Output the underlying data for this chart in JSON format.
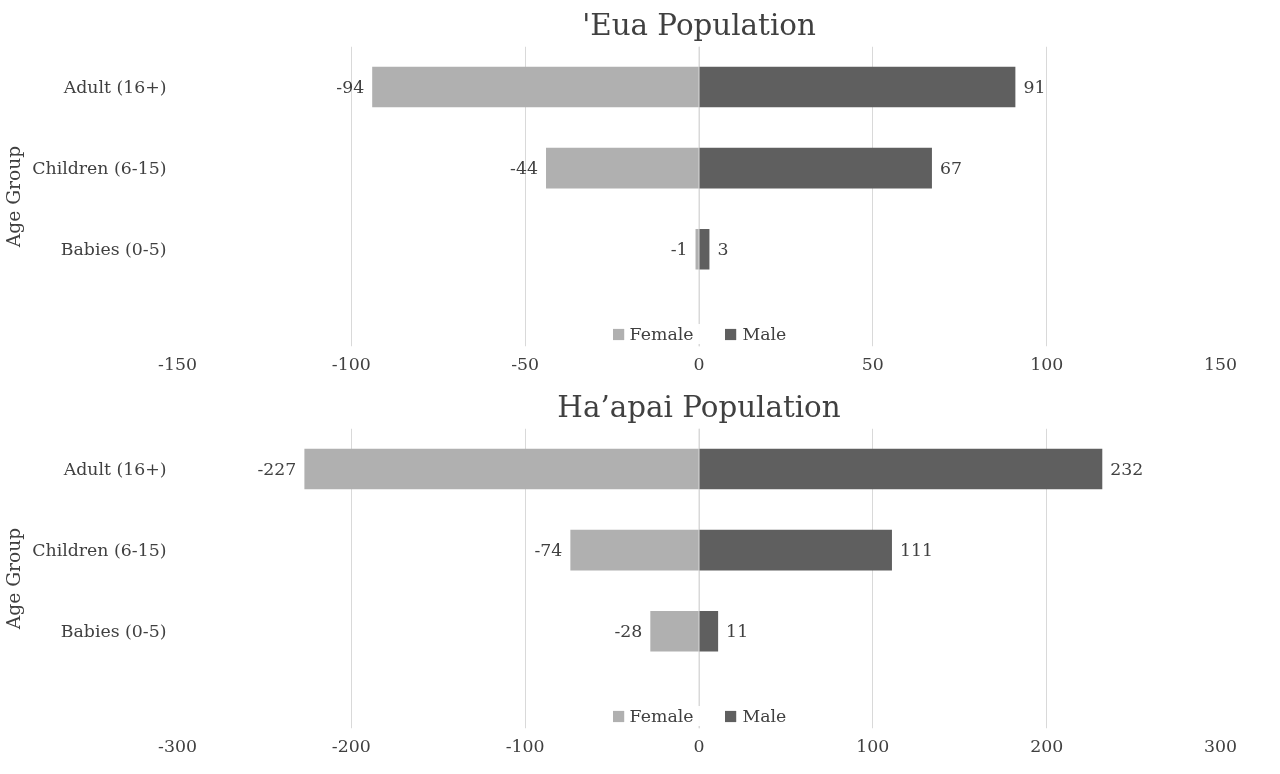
{
  "chart_data": [
    {
      "type": "bar",
      "orientation": "horizontal",
      "stacked": true,
      "title": "'Eua Population",
      "ylabel": "Age Group",
      "categories": [
        "Adult (16+)",
        "Children (6-15)",
        "Babies (0-5)"
      ],
      "series": [
        {
          "name": "Female",
          "color": "#b0b0b0",
          "values": [
            -94,
            -44,
            -1
          ]
        },
        {
          "name": "Male",
          "color": "#5f5f5f",
          "values": [
            91,
            67,
            3
          ]
        }
      ],
      "xlim": [
        -150,
        150
      ],
      "xticks": [
        -150,
        -100,
        -50,
        0,
        50,
        100,
        150
      ],
      "grid": "x",
      "legend": "bottom",
      "data_labels": true
    },
    {
      "type": "bar",
      "orientation": "horizontal",
      "stacked": true,
      "title": "Ha’apai Population",
      "ylabel": "Age Group",
      "categories": [
        "Adult (16+)",
        "Children (6-15)",
        "Babies (0-5)"
      ],
      "series": [
        {
          "name": "Female",
          "color": "#b0b0b0",
          "values": [
            -227,
            -74,
            -28
          ]
        },
        {
          "name": "Male",
          "color": "#5f5f5f",
          "values": [
            232,
            111,
            11
          ]
        }
      ],
      "xlim": [
        -300,
        300
      ],
      "xticks": [
        -300,
        -200,
        -100,
        0,
        100,
        200,
        300
      ],
      "grid": "x",
      "legend": "bottom",
      "data_labels": true
    }
  ]
}
